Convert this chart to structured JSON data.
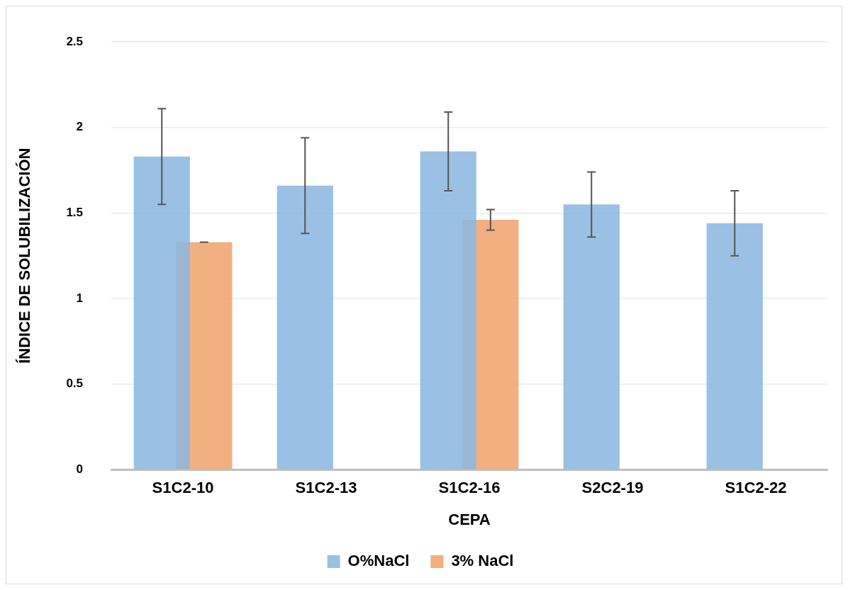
{
  "chart_data": {
    "type": "bar",
    "xlabel": "CEPA",
    "ylabel": "ÍNDICE DE SOLUBILIZACIÓN",
    "categories": [
      "S1C2-10",
      "S1C2-13",
      "S1C2-16",
      "S2C2-19",
      "S1C2-22"
    ],
    "series": [
      {
        "name": "O%NaCl",
        "color": "#8cb8e0",
        "values": [
          1.83,
          1.66,
          1.86,
          1.55,
          1.44
        ],
        "errors": [
          0.28,
          0.28,
          0.23,
          0.19,
          0.19
        ]
      },
      {
        "name": "3% NaCl",
        "color": "#f0a46d",
        "values": [
          1.33,
          null,
          1.46,
          null,
          null
        ],
        "errors": [
          0,
          null,
          [
            1.4,
            1.52
          ],
          null,
          null
        ]
      }
    ],
    "ylim": [
      0,
      2.5
    ],
    "yticks": [
      0,
      0.5,
      1,
      1.5,
      2,
      2.5
    ],
    "grid": "y",
    "legend": "bottom"
  }
}
